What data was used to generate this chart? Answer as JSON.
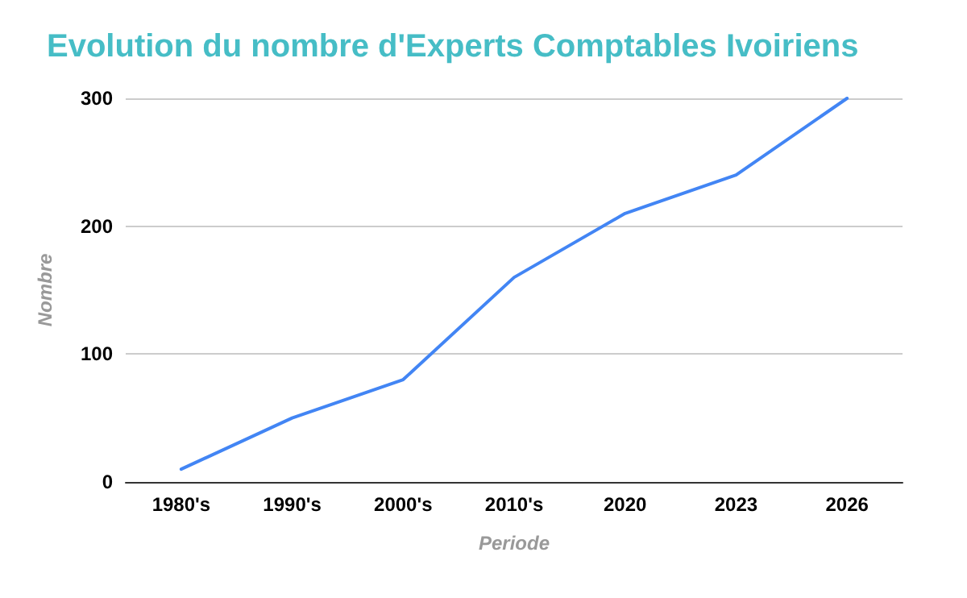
{
  "chart_data": {
    "type": "line",
    "title": "Evolution du nombre d'Experts Comptables Ivoiriens",
    "xlabel": "Periode",
    "ylabel": "Nombre",
    "categories": [
      "1980's",
      "1990's",
      "2000's",
      "2010's",
      "2020",
      "2023",
      "2026"
    ],
    "series": [
      {
        "color": "#4285f4",
        "values": [
          10,
          50,
          80,
          160,
          210,
          240,
          300
        ]
      }
    ],
    "ylim": [
      0,
      300
    ],
    "yticks": [
      0,
      100,
      200,
      300
    ],
    "grid": "y",
    "marker": "none",
    "line_style": "solid"
  }
}
